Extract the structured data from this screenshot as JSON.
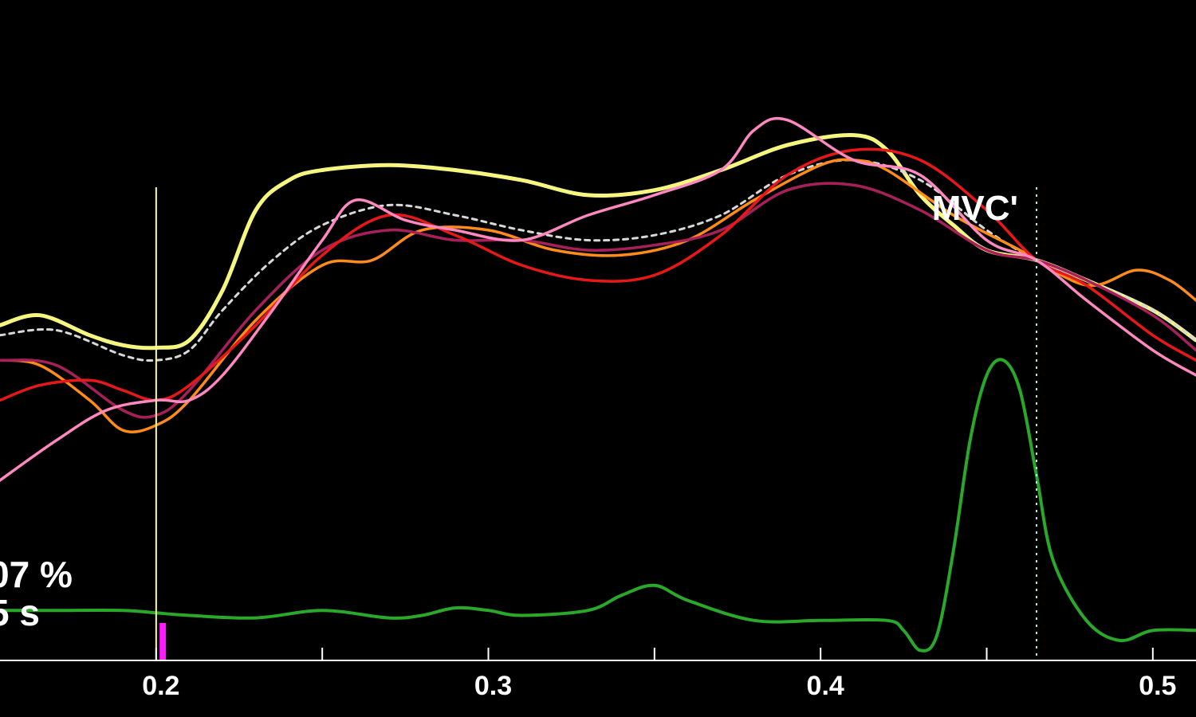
{
  "chart_data": {
    "type": "line",
    "xlim": [
      0.153,
      0.513
    ],
    "ylim": [
      -2,
      130
    ],
    "grid": false,
    "x_ticks": [
      0.2,
      0.25,
      0.3,
      0.35,
      0.4,
      0.45,
      0.5
    ],
    "x_tick_labels": [
      {
        "x": 0.2,
        "label": "0.2"
      },
      {
        "x": 0.3,
        "label": "0.3"
      },
      {
        "x": 0.4,
        "label": "0.4"
      },
      {
        "x": 0.5,
        "label": "0.5"
      }
    ],
    "markers": [
      {
        "name": "cursor",
        "x": 0.2,
        "color": "#fffb9e",
        "style": "solid"
      },
      {
        "name": "mvc",
        "x": 0.465,
        "label": "MVC'",
        "color": "#9ff0e0",
        "style": "dotted"
      }
    ],
    "event_marker": {
      "x": 0.202,
      "color": "#ff1aff"
    },
    "readout": {
      "line1": "07 %",
      "line2": "5 s"
    },
    "series": [
      {
        "color": "#f5f580",
        "width": 5,
        "points": [
          [
            0.153,
            65
          ],
          [
            0.165,
            67
          ],
          [
            0.18,
            63
          ],
          [
            0.19,
            61
          ],
          [
            0.2,
            60.5
          ],
          [
            0.21,
            62
          ],
          [
            0.22,
            72
          ],
          [
            0.23,
            88
          ],
          [
            0.24,
            94
          ],
          [
            0.25,
            96
          ],
          [
            0.27,
            97
          ],
          [
            0.29,
            96
          ],
          [
            0.31,
            94
          ],
          [
            0.33,
            91
          ],
          [
            0.35,
            92
          ],
          [
            0.37,
            96
          ],
          [
            0.39,
            101
          ],
          [
            0.41,
            103
          ],
          [
            0.42,
            100
          ],
          [
            0.43,
            91
          ],
          [
            0.44,
            85
          ],
          [
            0.45,
            80
          ],
          [
            0.465,
            78
          ],
          [
            0.48,
            74
          ],
          [
            0.5,
            68
          ],
          [
            0.513,
            62
          ]
        ]
      },
      {
        "color": "#d8d8d8",
        "width": 3,
        "dash": "6 6",
        "points": [
          [
            0.153,
            63
          ],
          [
            0.17,
            64
          ],
          [
            0.19,
            59
          ],
          [
            0.2,
            58
          ],
          [
            0.21,
            60
          ],
          [
            0.22,
            68
          ],
          [
            0.235,
            78
          ],
          [
            0.25,
            85
          ],
          [
            0.27,
            89
          ],
          [
            0.29,
            87
          ],
          [
            0.31,
            84
          ],
          [
            0.33,
            82
          ],
          [
            0.35,
            83
          ],
          [
            0.37,
            87
          ],
          [
            0.39,
            95
          ],
          [
            0.41,
            98
          ],
          [
            0.43,
            94
          ],
          [
            0.45,
            84
          ],
          [
            0.465,
            78
          ],
          [
            0.48,
            74
          ],
          [
            0.5,
            68
          ],
          [
            0.513,
            62
          ]
        ]
      },
      {
        "color": "#ff8c1a",
        "width": 3.5,
        "points": [
          [
            0.153,
            58
          ],
          [
            0.165,
            57
          ],
          [
            0.18,
            50
          ],
          [
            0.19,
            44
          ],
          [
            0.2,
            45
          ],
          [
            0.21,
            50
          ],
          [
            0.23,
            66
          ],
          [
            0.25,
            77
          ],
          [
            0.265,
            78
          ],
          [
            0.28,
            84
          ],
          [
            0.3,
            84
          ],
          [
            0.32,
            80
          ],
          [
            0.34,
            79
          ],
          [
            0.36,
            82
          ],
          [
            0.38,
            90
          ],
          [
            0.4,
            97
          ],
          [
            0.41,
            98
          ],
          [
            0.42,
            96
          ],
          [
            0.44,
            87
          ],
          [
            0.46,
            80
          ],
          [
            0.48,
            73
          ],
          [
            0.495,
            76
          ],
          [
            0.505,
            74
          ],
          [
            0.513,
            70
          ]
        ]
      },
      {
        "color": "#a8205a",
        "width": 3.5,
        "points": [
          [
            0.153,
            58
          ],
          [
            0.17,
            57
          ],
          [
            0.19,
            48
          ],
          [
            0.2,
            47
          ],
          [
            0.21,
            52
          ],
          [
            0.23,
            68
          ],
          [
            0.25,
            80
          ],
          [
            0.27,
            84
          ],
          [
            0.29,
            82
          ],
          [
            0.31,
            82
          ],
          [
            0.33,
            80
          ],
          [
            0.35,
            81
          ],
          [
            0.37,
            84
          ],
          [
            0.39,
            92
          ],
          [
            0.41,
            93
          ],
          [
            0.43,
            88
          ],
          [
            0.45,
            80
          ],
          [
            0.465,
            78
          ],
          [
            0.48,
            74
          ],
          [
            0.5,
            67
          ],
          [
            0.513,
            60
          ]
        ]
      },
      {
        "color": "#e81818",
        "width": 3.5,
        "points": [
          [
            0.153,
            50
          ],
          [
            0.165,
            53
          ],
          [
            0.18,
            54
          ],
          [
            0.19,
            52
          ],
          [
            0.2,
            50
          ],
          [
            0.21,
            53
          ],
          [
            0.23,
            65
          ],
          [
            0.25,
            79
          ],
          [
            0.27,
            87
          ],
          [
            0.29,
            83
          ],
          [
            0.31,
            77
          ],
          [
            0.33,
            74
          ],
          [
            0.35,
            75
          ],
          [
            0.37,
            83
          ],
          [
            0.39,
            95
          ],
          [
            0.41,
            100
          ],
          [
            0.43,
            98
          ],
          [
            0.45,
            88
          ],
          [
            0.465,
            78
          ],
          [
            0.48,
            73
          ],
          [
            0.5,
            63
          ],
          [
            0.513,
            58
          ]
        ]
      },
      {
        "color": "#ff88c0",
        "width": 3.5,
        "points": [
          [
            0.153,
            34
          ],
          [
            0.17,
            42
          ],
          [
            0.185,
            48
          ],
          [
            0.2,
            50
          ],
          [
            0.21,
            50
          ],
          [
            0.22,
            55
          ],
          [
            0.235,
            68
          ],
          [
            0.25,
            82
          ],
          [
            0.26,
            90
          ],
          [
            0.275,
            86
          ],
          [
            0.29,
            84
          ],
          [
            0.31,
            82
          ],
          [
            0.33,
            87
          ],
          [
            0.35,
            91
          ],
          [
            0.37,
            96
          ],
          [
            0.38,
            104
          ],
          [
            0.39,
            106
          ],
          [
            0.41,
            98
          ],
          [
            0.43,
            95
          ],
          [
            0.45,
            82
          ],
          [
            0.465,
            78
          ],
          [
            0.48,
            70
          ],
          [
            0.5,
            60
          ],
          [
            0.513,
            55
          ]
        ]
      },
      {
        "color": "#2aa82a",
        "width": 4,
        "points": [
          [
            0.153,
            8
          ],
          [
            0.17,
            8
          ],
          [
            0.19,
            8
          ],
          [
            0.2,
            7.5
          ],
          [
            0.21,
            7
          ],
          [
            0.23,
            6.5
          ],
          [
            0.25,
            8
          ],
          [
            0.27,
            6.5
          ],
          [
            0.28,
            7
          ],
          [
            0.29,
            8.5
          ],
          [
            0.3,
            8
          ],
          [
            0.31,
            7
          ],
          [
            0.33,
            8
          ],
          [
            0.34,
            11
          ],
          [
            0.35,
            13
          ],
          [
            0.36,
            10
          ],
          [
            0.38,
            6
          ],
          [
            0.4,
            6
          ],
          [
            0.42,
            6
          ],
          [
            0.425,
            4
          ],
          [
            0.43,
            0
          ],
          [
            0.435,
            3
          ],
          [
            0.44,
            20
          ],
          [
            0.445,
            42
          ],
          [
            0.45,
            55
          ],
          [
            0.455,
            58
          ],
          [
            0.46,
            52
          ],
          [
            0.465,
            35
          ],
          [
            0.47,
            18
          ],
          [
            0.48,
            6
          ],
          [
            0.49,
            2
          ],
          [
            0.5,
            4
          ],
          [
            0.513,
            4
          ]
        ]
      }
    ]
  }
}
